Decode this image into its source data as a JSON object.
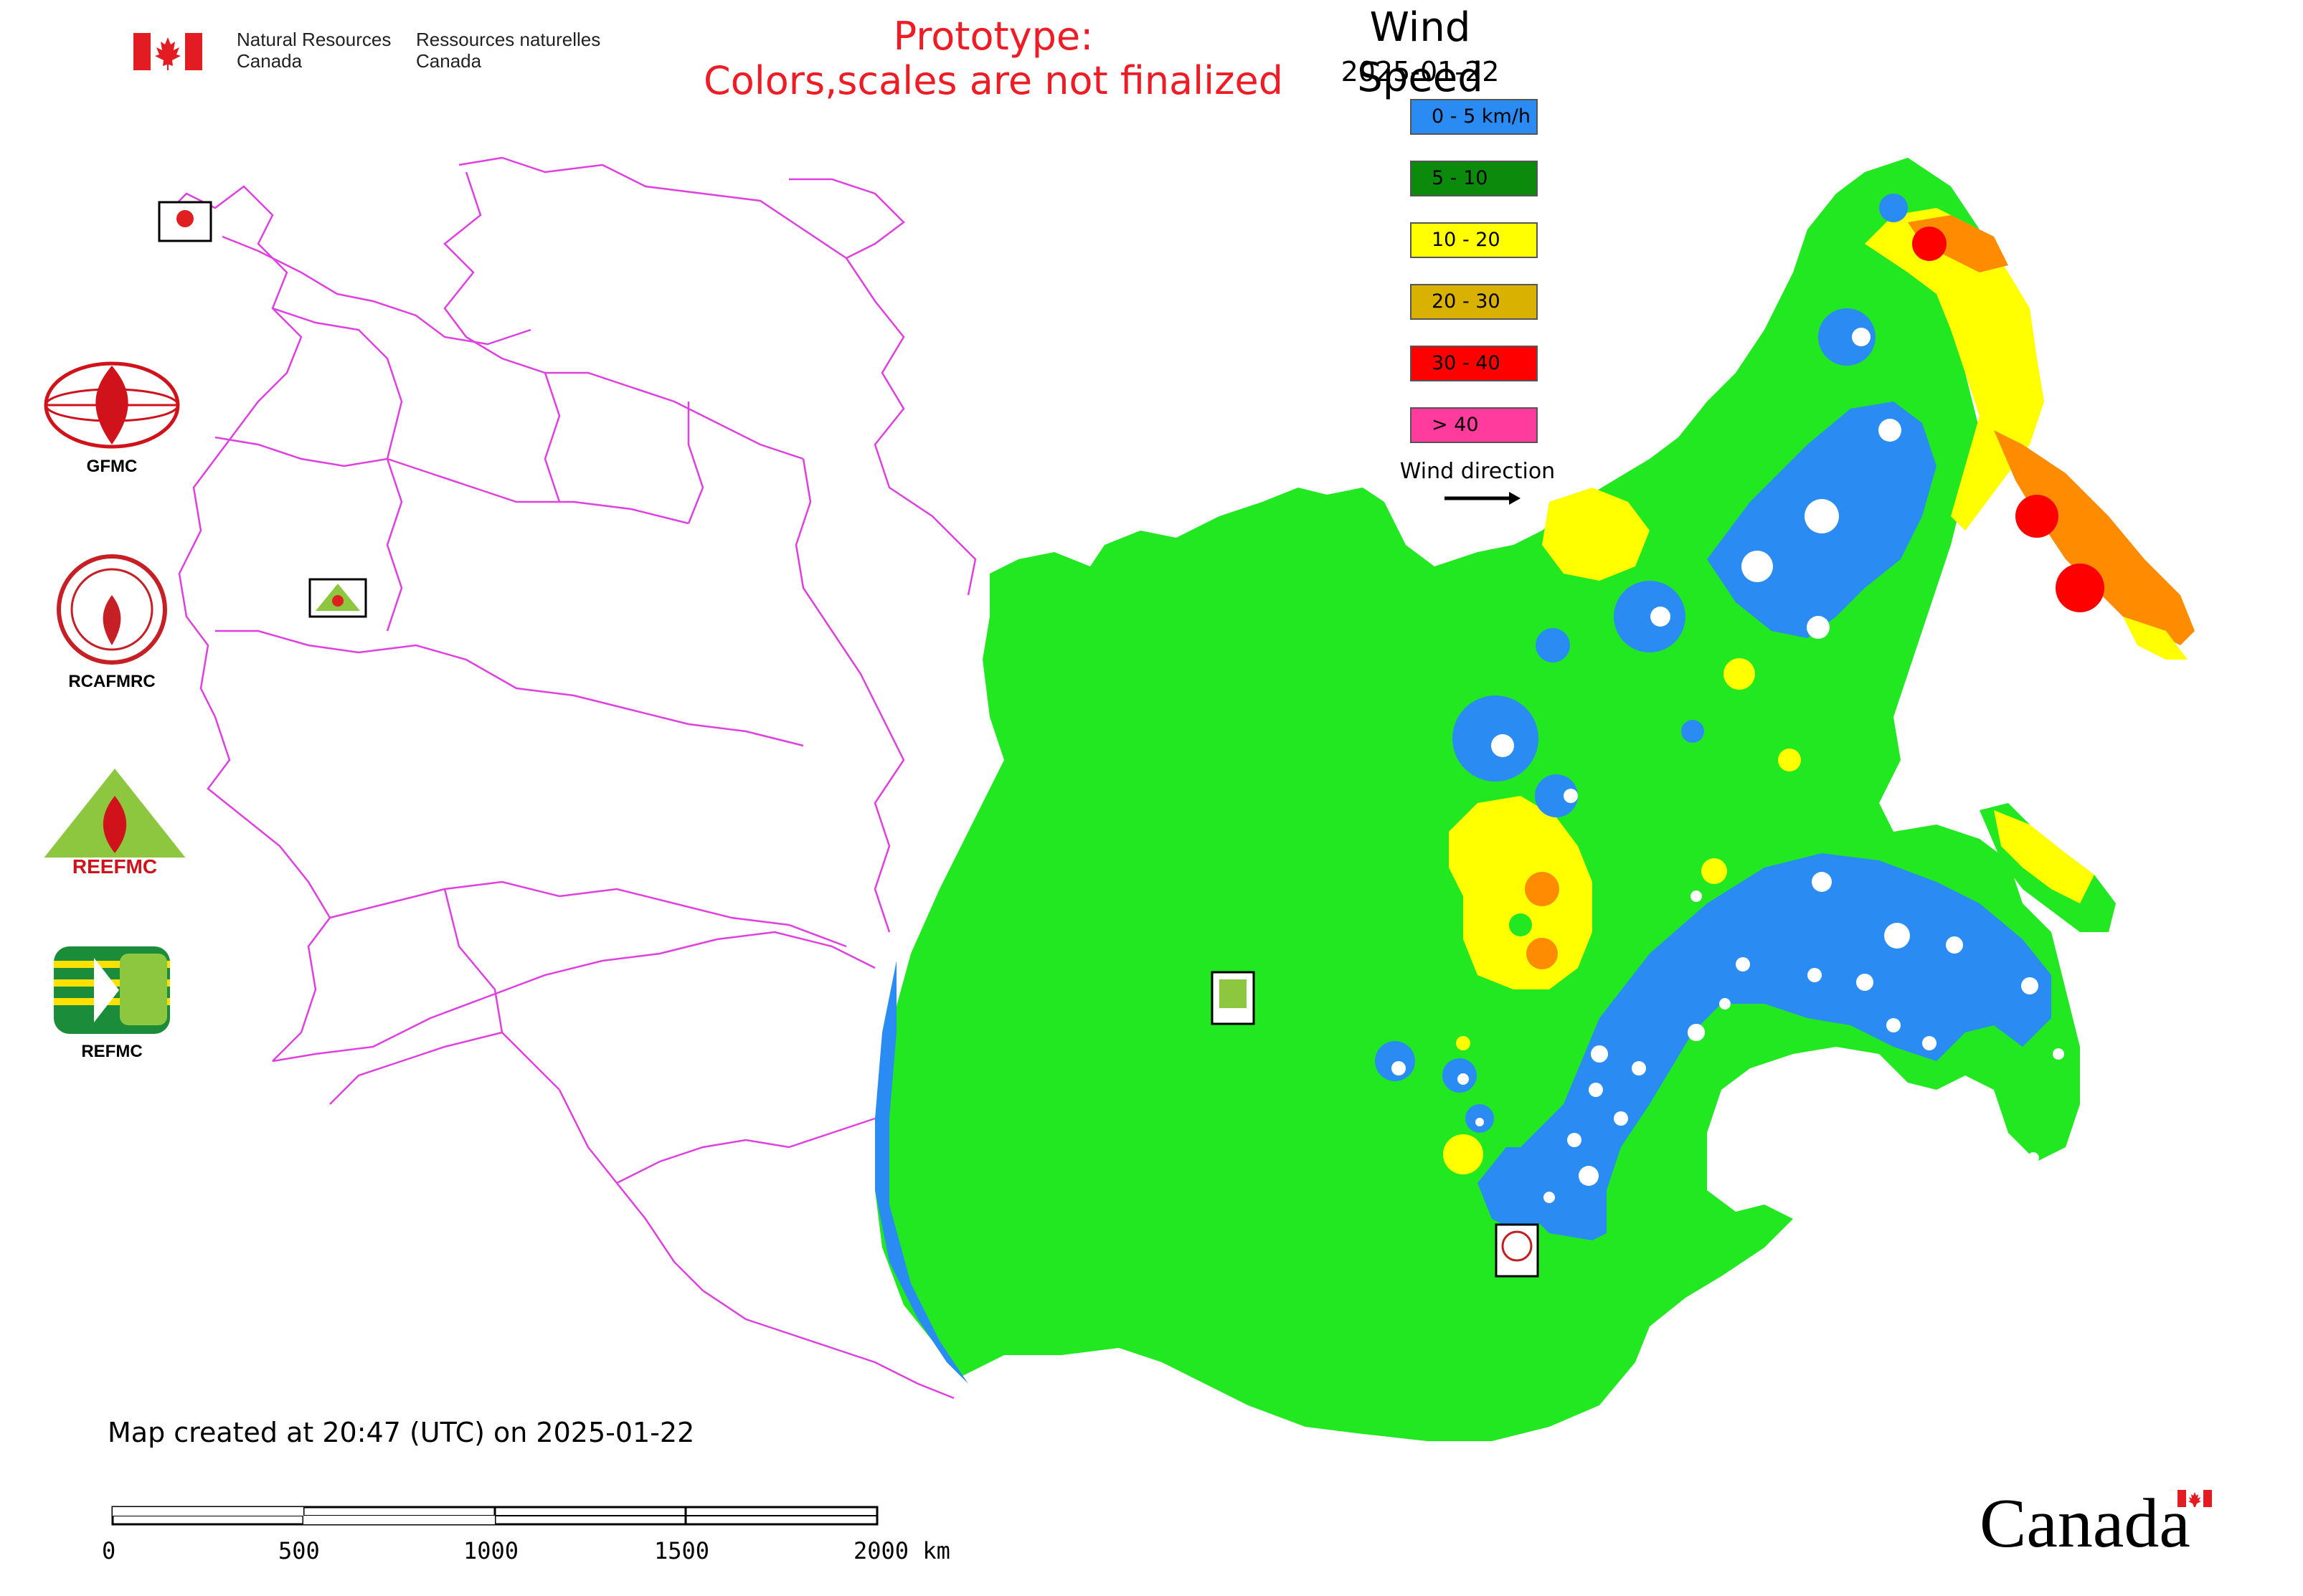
{
  "header": {
    "agency_en": "Natural Resources\nCanada",
    "agency_fr": "Ressources naturelles\nCanada",
    "prototype_line1": "Prototype:",
    "prototype_line2": "Colors,scales are not finalized",
    "title": "Wind Speed",
    "date": "2025-01-22"
  },
  "legend": {
    "items": [
      {
        "label": "0 - 5 km/h",
        "color": "#2a8cf2"
      },
      {
        "label": "5 - 10",
        "color": "#0b8a0b"
      },
      {
        "label": "10 - 20",
        "color": "#ffff00"
      },
      {
        "label": "20 - 30",
        "color": "#d9b100"
      },
      {
        "label": "30 - 40",
        "color": "#ff0000"
      },
      {
        "label": "> 40",
        "color": "#ff3c9e"
      }
    ],
    "wind_direction_label": "Wind direction"
  },
  "colors": {
    "land_green": "#22e822",
    "outline": "#e040e0",
    "low_blue": "#2a8cf2",
    "yellow": "#ffff00",
    "orange": "#ff8c00",
    "red": "#ff0000"
  },
  "agencies": [
    {
      "label": "GFMC",
      "icon": "gfmc-logo-icon"
    },
    {
      "label": "RCAFMRC",
      "icon": "rcafmrc-logo-icon"
    },
    {
      "label": "REEFMC",
      "icon": "reefmc-logo-icon"
    },
    {
      "label": "REFMC",
      "icon": "refmc-logo-icon"
    }
  ],
  "footer": {
    "created": "Map created at 20:47 (UTC) on 2025-01-22",
    "scale_ticks": [
      "0",
      "500",
      "1000",
      "1500",
      "2000 km"
    ],
    "wordmark": "Canada"
  }
}
